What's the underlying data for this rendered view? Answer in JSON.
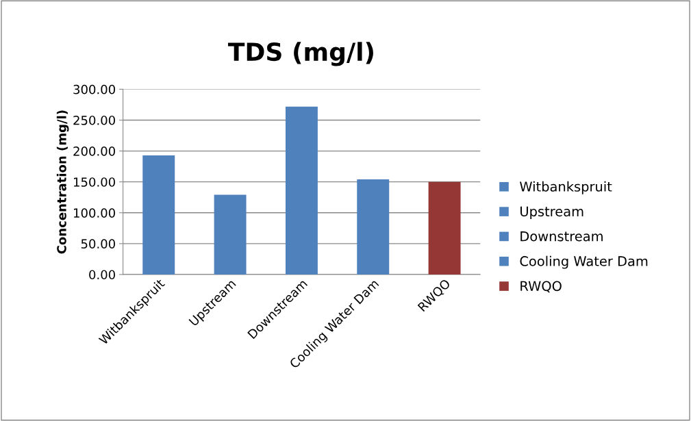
{
  "chart_data": {
    "type": "bar",
    "title": "TDS (mg/l)",
    "ylabel": "Concentration (mg/l)",
    "categories": [
      "Witbankspruit",
      "Upstream",
      "Downstream",
      "Cooling Water Dam",
      "RWQO"
    ],
    "series": [
      {
        "name": "Witbankspruit",
        "color": "#4f81bd",
        "values": [
          193,
          null,
          null,
          null,
          null
        ]
      },
      {
        "name": "Upstream",
        "color": "#4f81bd",
        "values": [
          null,
          129,
          null,
          null,
          null
        ]
      },
      {
        "name": "Downstream",
        "color": "#4f81bd",
        "values": [
          null,
          null,
          272,
          null,
          null
        ]
      },
      {
        "name": "Cooling Water Dam",
        "color": "#4f81bd",
        "values": [
          null,
          null,
          null,
          154,
          null
        ]
      },
      {
        "name": "RWQO",
        "color": "#953735",
        "values": [
          null,
          null,
          null,
          null,
          150
        ]
      }
    ],
    "ylim": [
      0,
      300
    ],
    "yticks": [
      {
        "value": 0,
        "label": "0.00"
      },
      {
        "value": 50,
        "label": "50.00"
      },
      {
        "value": 100,
        "label": "100.00"
      },
      {
        "value": 150,
        "label": "150.00"
      },
      {
        "value": 200,
        "label": "200.00"
      },
      {
        "value": 250,
        "label": "250.00"
      },
      {
        "value": 300,
        "label": "300.00"
      }
    ],
    "grid": "y",
    "legend": "right"
  }
}
